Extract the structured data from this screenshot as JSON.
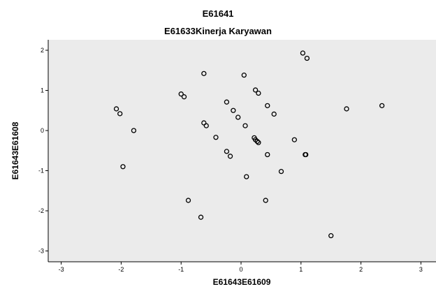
{
  "chart_data": {
    "type": "scatter",
    "title": "E61641",
    "subtitle": "E61633Kinerja Karyawan",
    "xlabel": "E61643E61609",
    "ylabel": "E61643E61608",
    "xlim": [
      -3.3,
      3.3
    ],
    "ylim": [
      -3.3,
      2.2
    ],
    "x_ticks": [
      -3,
      -2,
      -1,
      0,
      1,
      2,
      3
    ],
    "y_ticks": [
      -3,
      -2,
      -1,
      0,
      1,
      2
    ],
    "x_tick_labels": [
      "-3",
      "-2",
      "-1",
      "0",
      "1",
      "2",
      "3"
    ],
    "y_tick_labels": [
      "-3",
      "-2",
      "-1",
      "0",
      "1",
      "2"
    ],
    "grid": false,
    "plot_bg": "#ebebeb",
    "marker_color": "#000000",
    "points": [
      {
        "x": 1.03,
        "y": 1.93
      },
      {
        "x": 1.1,
        "y": 1.8
      },
      {
        "x": -0.62,
        "y": 1.42
      },
      {
        "x": 0.05,
        "y": 1.38
      },
      {
        "x": 0.24,
        "y": 1.01
      },
      {
        "x": 0.29,
        "y": 0.93
      },
      {
        "x": -1.0,
        "y": 0.91
      },
      {
        "x": -0.95,
        "y": 0.84
      },
      {
        "x": -0.24,
        "y": 0.71
      },
      {
        "x": 0.44,
        "y": 0.62
      },
      {
        "x": 2.35,
        "y": 0.62
      },
      {
        "x": 1.76,
        "y": 0.54
      },
      {
        "x": -2.08,
        "y": 0.54
      },
      {
        "x": -0.13,
        "y": 0.5
      },
      {
        "x": 0.55,
        "y": 0.41
      },
      {
        "x": -2.02,
        "y": 0.42
      },
      {
        "x": -0.05,
        "y": 0.33
      },
      {
        "x": -0.62,
        "y": 0.19
      },
      {
        "x": -0.58,
        "y": 0.12
      },
      {
        "x": 0.07,
        "y": 0.12
      },
      {
        "x": -1.79,
        "y": 0.0
      },
      {
        "x": -0.42,
        "y": -0.17
      },
      {
        "x": 0.22,
        "y": -0.18
      },
      {
        "x": 0.24,
        "y": -0.23
      },
      {
        "x": 0.27,
        "y": -0.27
      },
      {
        "x": 0.29,
        "y": -0.3
      },
      {
        "x": 0.89,
        "y": -0.23
      },
      {
        "x": -0.24,
        "y": -0.52
      },
      {
        "x": -0.18,
        "y": -0.64
      },
      {
        "x": 0.44,
        "y": -0.6
      },
      {
        "x": 1.07,
        "y": -0.6
      },
      {
        "x": 1.08,
        "y": -0.6
      },
      {
        "x": -1.97,
        "y": -0.9
      },
      {
        "x": 0.67,
        "y": -1.02
      },
      {
        "x": 0.09,
        "y": -1.15
      },
      {
        "x": -0.88,
        "y": -1.74
      },
      {
        "x": 0.41,
        "y": -1.74
      },
      {
        "x": -0.67,
        "y": -2.16
      },
      {
        "x": 1.5,
        "y": -2.62
      }
    ]
  }
}
